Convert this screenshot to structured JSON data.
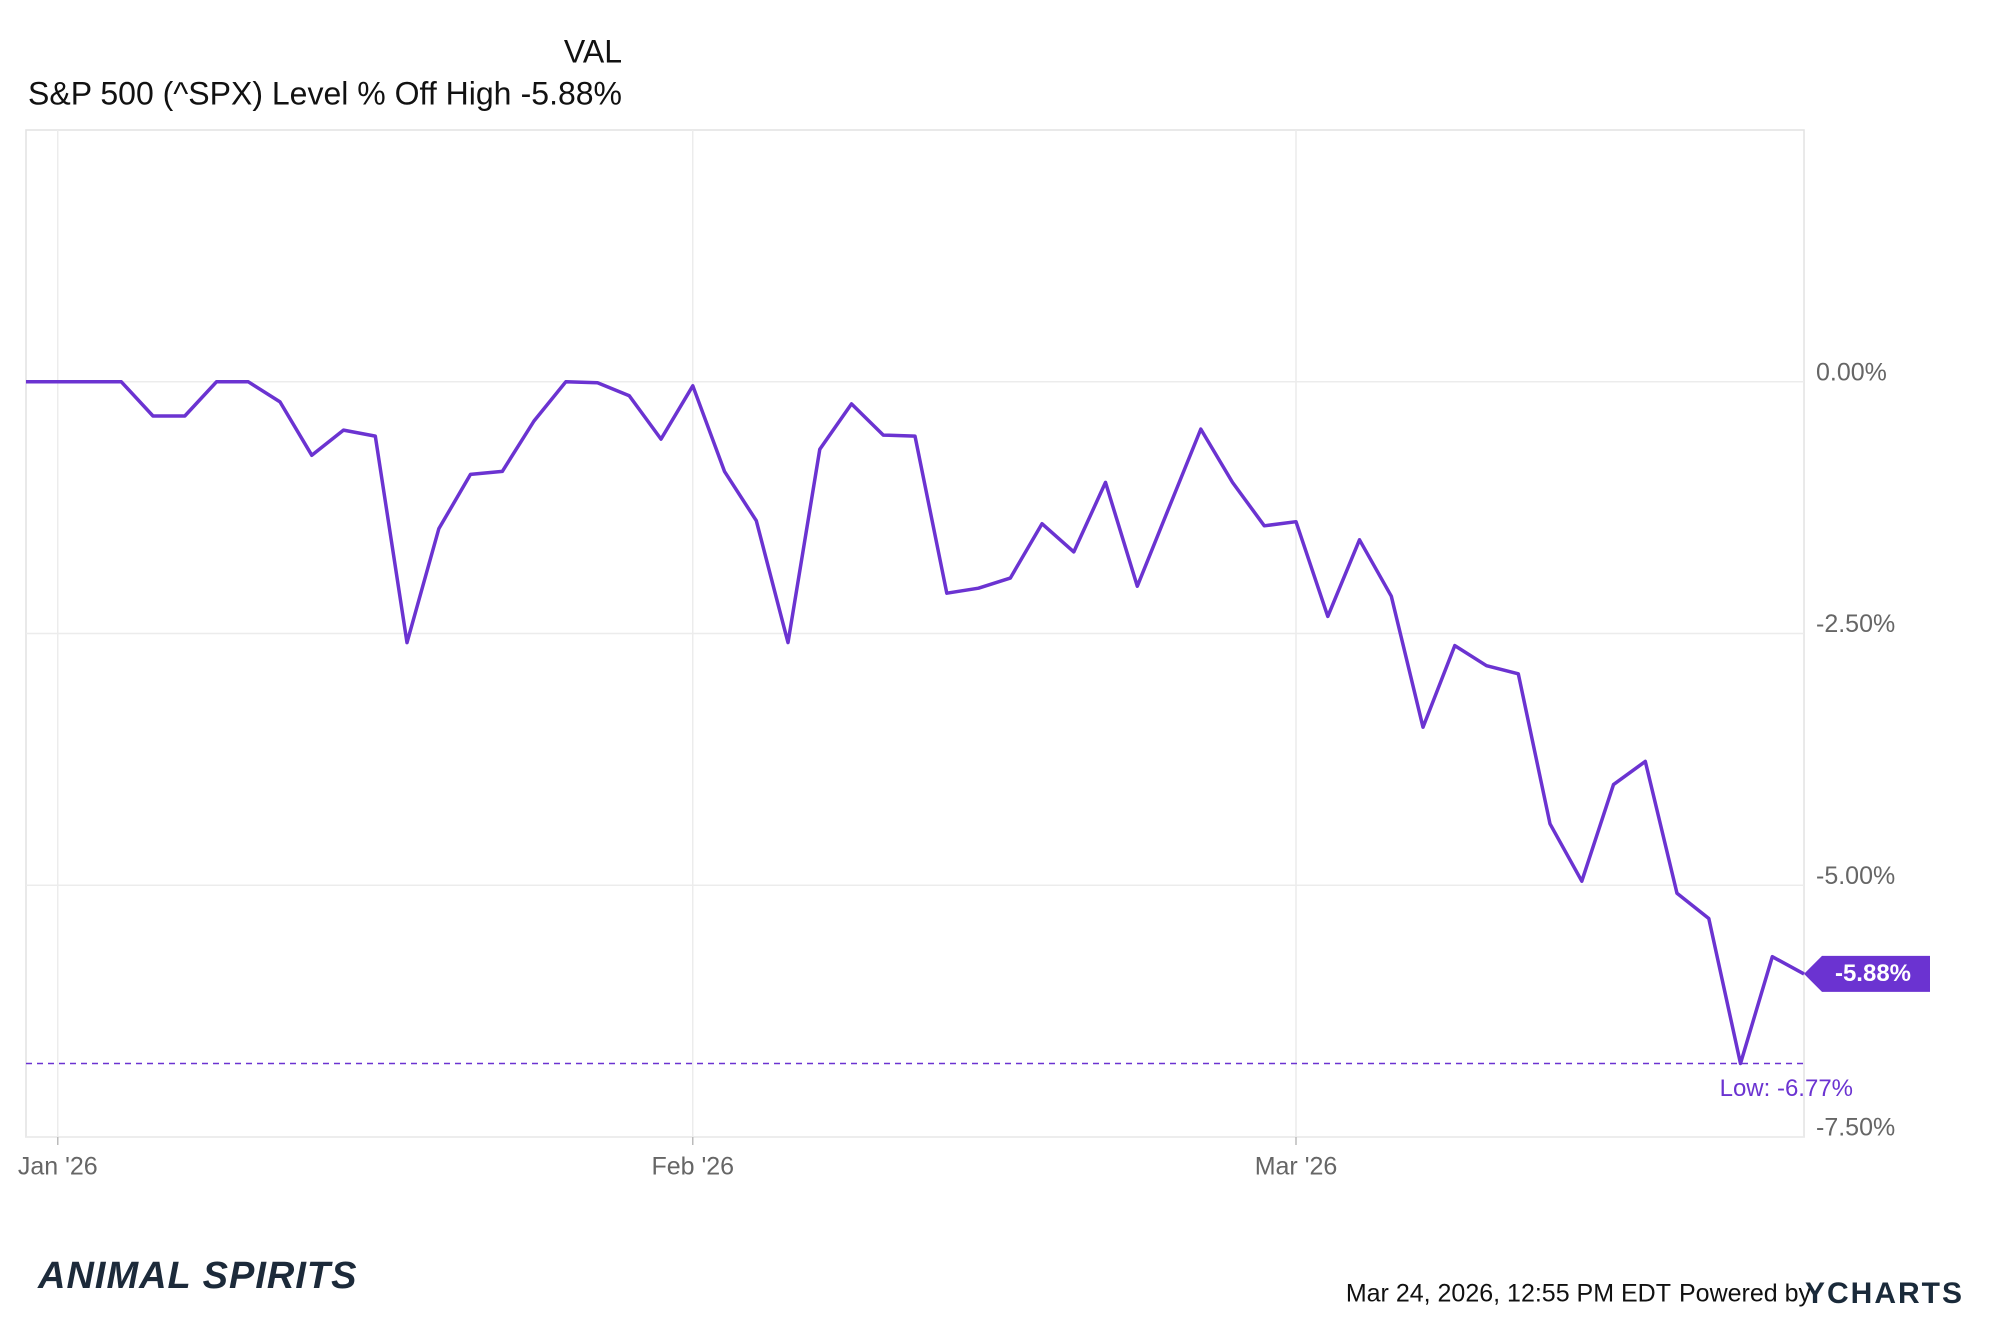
{
  "chart_data": {
    "type": "line",
    "legend_column_title": "VAL",
    "categories": [
      null,
      "Jan '26",
      null,
      null,
      null,
      null,
      null,
      null,
      null,
      null,
      null,
      null,
      null,
      null,
      null,
      null,
      null,
      null,
      null,
      null,
      null,
      "Feb '26",
      null,
      null,
      null,
      null,
      null,
      null,
      null,
      null,
      null,
      null,
      null,
      null,
      null,
      null,
      null,
      null,
      null,
      null,
      "Mar '26",
      null,
      null,
      null,
      null,
      null,
      null,
      null,
      null,
      null,
      null,
      null,
      null,
      null,
      null,
      null,
      null
    ],
    "series": [
      {
        "name": "S&P 500 (^SPX) Level % Off High",
        "color": "#6b33d1",
        "last_value_label": "-5.88%",
        "values": [
          0,
          0,
          0,
          0,
          -0.34,
          -0.34,
          0,
          0,
          -0.2,
          -0.73,
          -0.48,
          -0.54,
          -2.59,
          -1.46,
          -0.92,
          -0.89,
          -0.39,
          0,
          -0.01,
          -0.14,
          -0.57,
          -0.04,
          -0.89,
          -1.38,
          -2.59,
          -0.67,
          -0.22,
          -0.53,
          -0.54,
          -2.1,
          -2.05,
          -1.95,
          -1.41,
          -1.69,
          -1.0,
          -2.03,
          -1.25,
          -0.47,
          -1.0,
          -1.43,
          -1.39,
          -2.33,
          -1.57,
          -2.13,
          -3.43,
          -2.62,
          -2.82,
          -2.9,
          -4.39,
          -4.96,
          -4.0,
          -3.77,
          -5.08,
          -5.33,
          -6.77,
          -5.71,
          -5.88
        ]
      }
    ],
    "ylim": [
      -7.5,
      2.5
    ],
    "yticks": [
      {
        "value": 0,
        "label": "0.00%"
      },
      {
        "value": -2.5,
        "label": "-2.50%"
      },
      {
        "value": -5,
        "label": "-5.00%"
      },
      {
        "value": -7.5,
        "label": "-7.50%"
      }
    ],
    "grid": true,
    "annotations": [
      {
        "value": -6.77,
        "label": "Low: -6.77%"
      }
    ]
  },
  "footer": {
    "timestamp": "Mar 24, 2026, 12:55 PM EDT",
    "powered_by": "Powered by",
    "brand": "YCHARTS",
    "logo": "ANIMAL SPIRITS"
  }
}
